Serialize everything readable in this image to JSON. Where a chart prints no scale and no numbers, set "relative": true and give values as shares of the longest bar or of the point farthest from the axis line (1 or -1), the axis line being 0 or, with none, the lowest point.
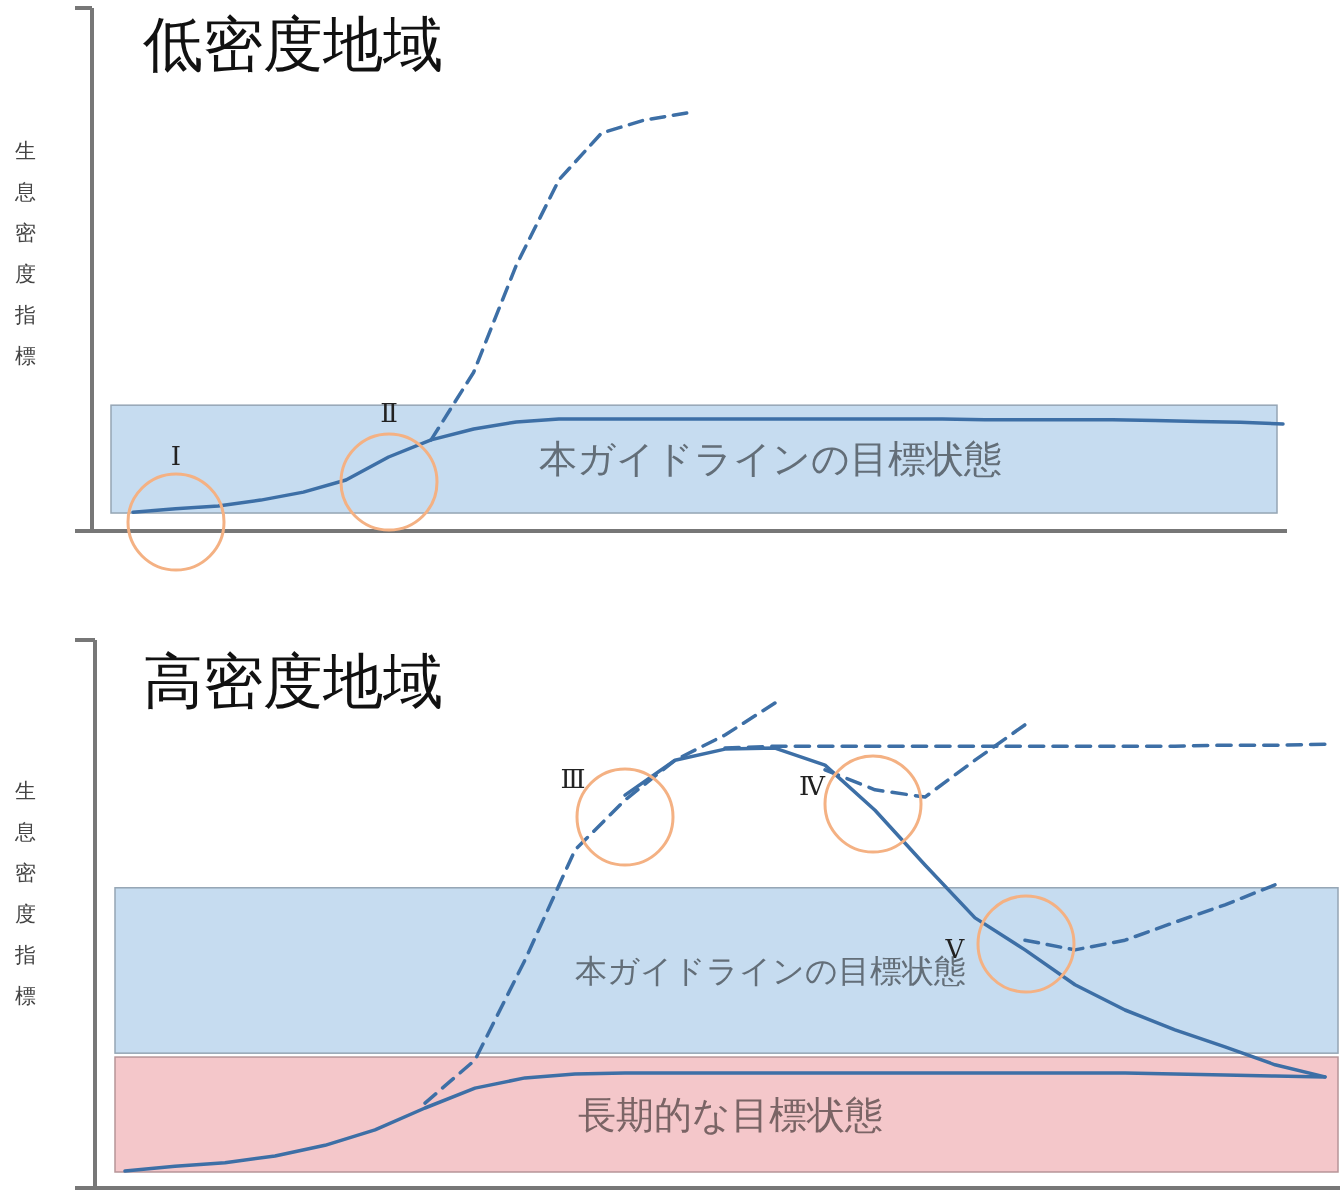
{
  "chart_data": [
    {
      "type": "line",
      "title": "低密度地域",
      "ylabel": "生息密度指標",
      "relative": true,
      "categories": [
        null,
        null,
        null,
        null,
        null,
        null,
        null,
        null,
        null,
        null,
        null,
        null,
        null,
        null,
        null,
        null,
        null,
        null,
        null,
        null,
        null,
        null,
        null,
        null,
        null,
        null,
        null,
        null
      ],
      "series": [
        {
          "color": "#3d6fa6",
          "line_style": "solid",
          "values": [
            0.045,
            0.053,
            0.06,
            0.074,
            0.093,
            0.122,
            0.177,
            0.218,
            0.244,
            0.261,
            0.268,
            0.268,
            0.268,
            0.268,
            0.268,
            0.268,
            0.268,
            0.268,
            0.268,
            0.268,
            0.266,
            0.266,
            0.266,
            0.266,
            0.264,
            0.262,
            0.26,
            0.256
          ]
        },
        {
          "color": "#3d6fa6",
          "line_style": "dashed",
          "values": [
            null,
            null,
            null,
            null,
            null,
            null,
            null,
            0.218,
            0.38,
            0.636,
            0.84,
            0.952,
            0.983,
            1,
            null,
            null,
            null,
            null,
            null,
            null,
            null,
            null,
            null,
            null,
            null,
            null,
            null,
            null
          ]
        }
      ],
      "annotations": [
        "Ⅰ",
        "Ⅱ"
      ],
      "bands": [
        {
          "axis": "y",
          "from": 0.043,
          "to": 0.301,
          "label": "本ガイドラインの目標状態",
          "color": "#c6dcf0"
        }
      ]
    },
    {
      "type": "line",
      "title": "高密度地域",
      "ylabel": "生息密度指標",
      "relative": true,
      "categories": [
        null,
        null,
        null,
        null,
        null,
        null,
        null,
        null,
        null,
        null,
        null,
        null,
        null,
        null,
        null,
        null,
        null,
        null,
        null,
        null,
        null,
        null,
        null,
        null,
        null
      ],
      "series": [
        {
          "color": "#3d6fa6",
          "line_style": "solid",
          "values": [
            0.035,
            0.045,
            0.052,
            0.066,
            0.088,
            0.12,
            0.165,
            0.206,
            0.227,
            0.235,
            0.237,
            0.237,
            0.237,
            0.237,
            0.237,
            0.237,
            0.237,
            0.237,
            0.237,
            0.237,
            0.237,
            0.235,
            0.233,
            0.231,
            0.229
          ]
        },
        {
          "color": "#3d6fa6",
          "line_style": "solid",
          "values": [
            null,
            null,
            null,
            null,
            null,
            null,
            null,
            null,
            null,
            null,
            0.81,
            0.882,
            0.905,
            0.907,
            0.872,
            0.779,
            0.666,
            0.557,
            0.491,
            0.419,
            0.367,
            0.326,
            0.291,
            0.254,
            0.229
          ]
        },
        {
          "color": "#3d6fa6",
          "line_style": "dashed",
          "values": [
            null,
            null,
            null,
            null,
            null,
            null,
            0.175,
            0.264,
            0.47,
            0.697,
            0.8,
            0.882,
            0.934,
            1,
            null,
            null,
            null,
            null,
            null,
            null,
            null,
            null,
            null,
            null,
            null
          ]
        },
        {
          "color": "#3d6fa6",
          "line_style": "dashed",
          "values": [
            null,
            null,
            null,
            null,
            null,
            null,
            null,
            null,
            null,
            null,
            null,
            null,
            0.907,
            0.911,
            0.911,
            0.911,
            0.911,
            0.911,
            0.911,
            0.911,
            0.911,
            0.911,
            0.913,
            0.913,
            0.915
          ]
        },
        {
          "color": "#3d6fa6",
          "line_style": "dashed",
          "values": [
            null,
            null,
            null,
            null,
            null,
            null,
            null,
            null,
            null,
            null,
            null,
            null,
            null,
            null,
            0.862,
            0.821,
            0.806,
            0.882,
            0.955,
            null,
            null,
            null,
            null,
            null,
            null
          ]
        },
        {
          "color": "#3d6fa6",
          "line_style": "dashed",
          "values": [
            null,
            null,
            null,
            null,
            null,
            null,
            null,
            null,
            null,
            null,
            null,
            null,
            null,
            null,
            null,
            null,
            null,
            null,
            0.511,
            0.491,
            0.511,
            0.548,
            0.584,
            0.625,
            null
          ]
        }
      ],
      "annotations": [
        "Ⅲ",
        "Ⅳ",
        "Ⅴ"
      ],
      "bands": [
        {
          "axis": "y",
          "from": 0.033,
          "to": 0.27,
          "label": "長期的な目標状態",
          "color": "#f4c7ca"
        },
        {
          "axis": "y",
          "from": 0.278,
          "to": 0.619,
          "label": "本ガイドラインの目標状態",
          "color": "#c6dcf0"
        }
      ]
    }
  ]
}
